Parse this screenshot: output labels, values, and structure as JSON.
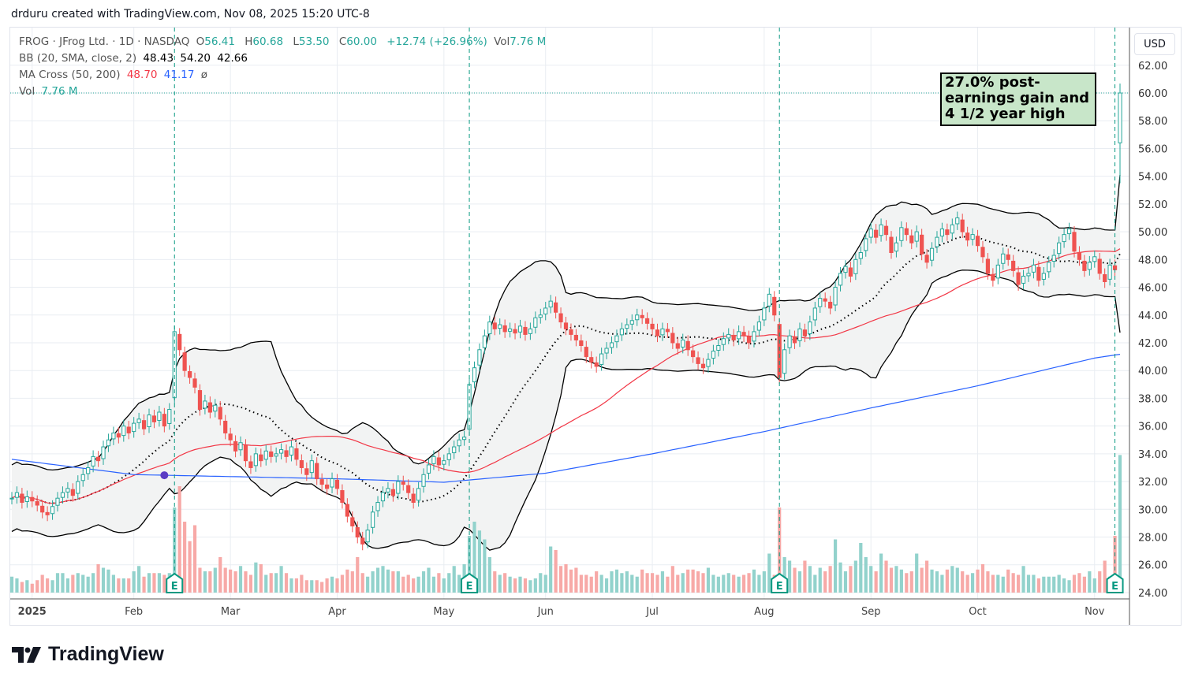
{
  "credit": "drduru created with TradingView.com, Nov 08, 2025 15:20 UTC-8",
  "legend": {
    "symbol": "FROG · JFrog Ltd. · 1D · NASDAQ",
    "o_label": "O",
    "o": "56.41",
    "h_label": "H",
    "h": "60.68",
    "l_label": "L",
    "l": "53.50",
    "c_label": "C",
    "c": "60.00",
    "change": "+12.74 (+26.96%)",
    "vol_label": "Vol",
    "vol": "7.76 M",
    "bb_label": "BB (20, SMA, close, 2)",
    "bb_basis": "48.43",
    "bb_upper": "54.20",
    "bb_lower": "42.66",
    "ma_label": "MA Cross (50, 200)",
    "ma50": "48.70",
    "ma200": "41.17",
    "ma_cross_symbol": "ø",
    "vol_row_label": "Vol",
    "vol_row_value": "7.76 M"
  },
  "currency": "USD",
  "annotation": "27.0% post-earnings gain and 4 1/2 year high",
  "logo_text": "TradingView",
  "colors": {
    "up": "#26a69a",
    "down": "#ef5350",
    "vol_up": "#92d2cc",
    "vol_down": "#f7a9a7",
    "ma50": "#f23645",
    "ma200": "#2962ff",
    "bb": "#000000",
    "bb_fill": "#f2f3f3",
    "grid": "#e9edf2",
    "earnings": "#089981",
    "cross": "#5b3cc4"
  },
  "chart_data": {
    "type": "candlestick",
    "title": "FROG · JFrog Ltd. · 1D · NASDAQ",
    "ylabel": "USD",
    "ylim": [
      24,
      62
    ],
    "y_ticks": [
      "24.00",
      "26.00",
      "28.00",
      "30.00",
      "32.00",
      "34.00",
      "36.00",
      "38.00",
      "40.00",
      "42.00",
      "44.00",
      "46.00",
      "48.00",
      "50.00",
      "52.00",
      "54.00",
      "56.00",
      "58.00",
      "60.00",
      "62.00"
    ],
    "x_labels": [
      {
        "label": "2025",
        "index": 4,
        "bold": true
      },
      {
        "label": "Feb",
        "index": 24
      },
      {
        "label": "Mar",
        "index": 43
      },
      {
        "label": "Apr",
        "index": 64
      },
      {
        "label": "May",
        "index": 85
      },
      {
        "label": "Jun",
        "index": 105
      },
      {
        "label": "Jul",
        "index": 126
      },
      {
        "label": "Aug",
        "index": 148
      },
      {
        "label": "Sep",
        "index": 169
      },
      {
        "label": "Oct",
        "index": 190
      },
      {
        "label": "Nov",
        "index": 213
      }
    ],
    "closes": [
      30.8,
      31.2,
      30.5,
      30.9,
      30.6,
      30.3,
      29.8,
      29.6,
      30.2,
      30.8,
      31.2,
      31.5,
      31.0,
      32.0,
      32.5,
      33.0,
      33.8,
      33.5,
      34.5,
      35.0,
      35.5,
      35.2,
      36.0,
      35.5,
      36.2,
      36.5,
      35.8,
      36.8,
      36.3,
      37.0,
      36.0,
      37.2,
      42.8,
      41.5,
      40.0,
      39.5,
      38.8,
      37.2,
      37.8,
      37.0,
      37.5,
      36.5,
      35.5,
      35.0,
      34.2,
      34.8,
      33.5,
      33.0,
      34.0,
      33.5,
      34.2,
      33.8,
      34.0,
      34.3,
      33.8,
      34.5,
      33.6,
      33.0,
      32.5,
      33.5,
      32.2,
      31.8,
      31.5,
      32.2,
      31.5,
      30.5,
      29.5,
      28.8,
      28.0,
      27.5,
      28.5,
      29.8,
      30.5,
      31.2,
      31.5,
      31.0,
      32.0,
      31.8,
      31.2,
      30.5,
      31.5,
      32.5,
      33.2,
      33.8,
      33.2,
      33.5,
      34.0,
      34.5,
      35.0,
      35.2,
      39.0,
      40.2,
      41.5,
      42.5,
      43.5,
      43.0,
      43.3,
      42.8,
      43.0,
      42.7,
      43.2,
      42.6,
      43.0,
      43.8,
      44.0,
      44.5,
      45.0,
      44.2,
      43.5,
      43.0,
      42.6,
      42.2,
      41.8,
      41.0,
      40.6,
      40.3,
      41.2,
      41.6,
      42.0,
      42.5,
      43.0,
      43.3,
      43.6,
      44.0,
      43.8,
      43.4,
      43.0,
      42.5,
      43.0,
      42.8,
      42.0,
      41.6,
      42.2,
      41.5,
      41.0,
      40.5,
      40.2,
      40.8,
      41.4,
      41.8,
      42.3,
      42.6,
      42.2,
      42.8,
      42.5,
      42.0,
      42.8,
      43.5,
      44.5,
      45.5,
      44.0,
      39.5,
      41.5,
      42.5,
      42.0,
      43.0,
      42.5,
      43.5,
      44.5,
      45.2,
      45.0,
      44.5,
      46.0,
      47.0,
      47.5,
      46.8,
      48.0,
      48.5,
      49.5,
      50.2,
      49.6,
      50.5,
      49.8,
      48.5,
      49.2,
      50.3,
      49.8,
      49.2,
      50.0,
      48.4,
      47.8,
      48.8,
      49.6,
      50.2,
      49.8,
      50.5,
      51.0,
      50.0,
      49.4,
      49.8,
      49.0,
      48.2,
      47.0,
      46.5,
      47.6,
      48.4,
      48.0,
      47.2,
      46.2,
      46.8,
      47.0,
      47.6,
      46.5,
      47.0,
      47.8,
      48.3,
      49.2,
      49.8,
      50.2,
      48.6,
      48.0,
      47.2,
      47.8,
      48.2,
      47.0,
      46.4,
      47.6,
      47.26,
      60.0
    ],
    "last_bar": {
      "open": 56.41,
      "high": 60.68,
      "low": 53.5,
      "close": 60.0
    },
    "volume_millions": [
      0.9,
      0.8,
      0.6,
      0.7,
      0.5,
      0.7,
      1.0,
      0.8,
      0.7,
      1.1,
      1.1,
      0.8,
      1.0,
      1.1,
      1.0,
      0.9,
      1.1,
      1.6,
      1.4,
      1.3,
      1.0,
      0.8,
      0.8,
      0.8,
      1.2,
      1.5,
      0.9,
      1.1,
      1.1,
      1.1,
      1.0,
      1.1,
      4.8,
      6.0,
      4.0,
      2.9,
      3.8,
      1.4,
      1.2,
      1.2,
      1.4,
      2.0,
      1.4,
      1.3,
      1.2,
      1.5,
      1.2,
      1.0,
      1.7,
      1.6,
      1.0,
      1.1,
      1.1,
      1.5,
      1.1,
      0.8,
      0.8,
      1.0,
      0.7,
      0.7,
      0.7,
      0.6,
      0.8,
      0.9,
      0.8,
      1.0,
      1.3,
      1.2,
      2.0,
      1.1,
      0.9,
      1.2,
      1.4,
      1.5,
      1.3,
      1.2,
      1.2,
      0.9,
      1.0,
      0.8,
      0.9,
      1.2,
      1.4,
      0.9,
      1.1,
      0.8,
      1.1,
      1.5,
      1.0,
      1.6,
      3.2,
      4.0,
      3.5,
      3.0,
      2.0,
      1.2,
      1.0,
      1.1,
      0.9,
      0.8,
      0.9,
      0.8,
      0.7,
      0.8,
      1.1,
      1.0,
      2.6,
      2.4,
      1.5,
      1.6,
      1.3,
      1.4,
      1.0,
      1.0,
      0.9,
      1.2,
      1.0,
      0.8,
      1.2,
      1.3,
      1.1,
      1.2,
      1.0,
      0.9,
      1.3,
      1.1,
      1.1,
      1.0,
      1.2,
      0.9,
      1.5,
      1.0,
      1.1,
      1.3,
      1.3,
      1.2,
      1.1,
      1.4,
      1.0,
      0.9,
      1.0,
      1.1,
      1.0,
      0.9,
      1.0,
      1.1,
      1.3,
      1.0,
      1.2,
      2.2,
      1.0,
      4.8,
      2.0,
      1.8,
      1.4,
      1.2,
      1.8,
      1.5,
      1.0,
      1.4,
      1.2,
      1.5,
      3.0,
      1.7,
      1.2,
      1.5,
      1.8,
      2.8,
      2.0,
      1.5,
      1.2,
      2.2,
      1.8,
      1.4,
      1.5,
      1.3,
      1.1,
      1.2,
      2.2,
      1.4,
      1.8,
      1.3,
      1.2,
      1.0,
      1.3,
      1.5,
      1.4,
      1.2,
      1.0,
      1.1,
      1.3,
      1.6,
      1.2,
      1.0,
      1.0,
      0.9,
      1.3,
      1.1,
      1.0,
      1.5,
      1.0,
      1.0,
      0.8,
      0.9,
      0.9,
      0.9,
      1.0,
      0.8,
      0.7,
      1.0,
      1.1,
      0.9,
      1.2,
      0.8,
      1.2,
      1.8,
      0.9,
      3.2,
      7.76
    ],
    "ma200_waypoints": [
      [
        0,
        33.6
      ],
      [
        24,
        32.5
      ],
      [
        64,
        32.2
      ],
      [
        85,
        31.95
      ],
      [
        105,
        32.6
      ],
      [
        126,
        34.0
      ],
      [
        148,
        35.6
      ],
      [
        169,
        37.3
      ],
      [
        190,
        38.9
      ],
      [
        213,
        40.9
      ],
      [
        218,
        41.17
      ]
    ],
    "earnings_marker_label": "E",
    "earnings_indices": [
      32,
      90,
      151,
      217
    ],
    "ma_cross_index": 30,
    "last_price_line": 60.0
  }
}
